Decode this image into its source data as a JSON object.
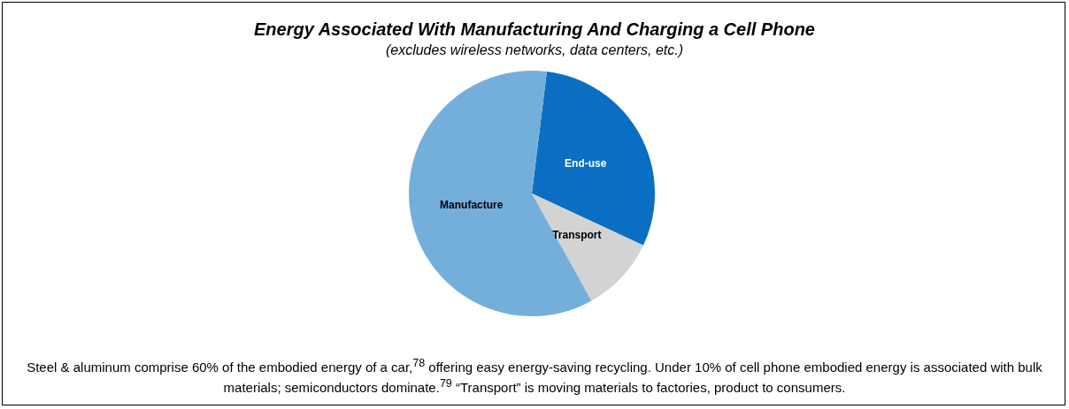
{
  "chart_data": {
    "type": "pie",
    "title": "Energy Associated With Manufacturing And Charging a Cell Phone",
    "subtitle": "(excludes wireless networks, data centers, etc.)",
    "categories": [
      "End-use",
      "Transport",
      "Manufacture"
    ],
    "values": [
      30,
      10,
      60
    ],
    "colors": [
      "#0a6fc2",
      "#d3d3d3",
      "#74afdc"
    ],
    "annotations": [
      "Steel & aluminum comprise 60% of the embodied energy of a car,$^{78}$ offering easy energy-saving recycling. Under 10% of cell phone embodied energy is associated with bulk materials; semiconductors dominate.$^{79}$ “Transport” is moving materials to factories, product to consumers."
    ]
  }
}
